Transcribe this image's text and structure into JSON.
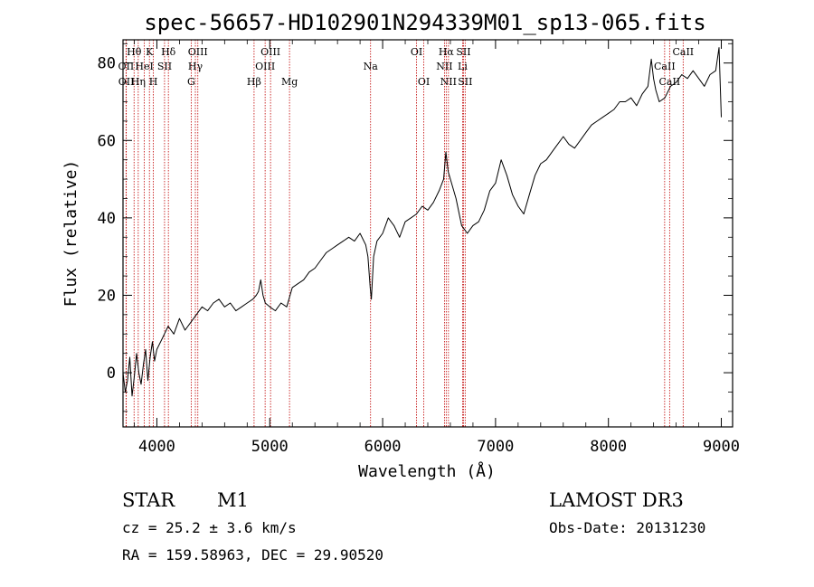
{
  "chart_data": {
    "type": "line",
    "title": "spec-56657-HD102901N294339M01_sp13-065.fits",
    "xlabel": "Wavelength (Å)",
    "ylabel": "Flux (relative)",
    "xlim": [
      3700,
      9100
    ],
    "ylim": [
      -14,
      86
    ],
    "x_ticks": [
      4000,
      5000,
      6000,
      7000,
      8000,
      9000
    ],
    "y_ticks": [
      0,
      20,
      40,
      60,
      80
    ],
    "series": [
      {
        "x": [
          3700,
          3720,
          3740,
          3760,
          3780,
          3800,
          3820,
          3840,
          3860,
          3880,
          3900,
          3920,
          3940,
          3960,
          3980,
          4000,
          4050,
          4100,
          4150,
          4200,
          4250,
          4300,
          4350,
          4400,
          4450,
          4500,
          4550,
          4600,
          4650,
          4700,
          4750,
          4800,
          4850,
          4880,
          4900,
          4920,
          4940,
          4960,
          5000,
          5050,
          5100,
          5150,
          5200,
          5250,
          5300,
          5350,
          5400,
          5450,
          5500,
          5550,
          5600,
          5650,
          5700,
          5750,
          5800,
          5850,
          5870,
          5890,
          5900,
          5920,
          5950,
          6000,
          6050,
          6100,
          6150,
          6200,
          6250,
          6300,
          6350,
          6400,
          6450,
          6500,
          6540,
          6560,
          6580,
          6600,
          6650,
          6700,
          6750,
          6800,
          6850,
          6900,
          6950,
          7000,
          7050,
          7100,
          7150,
          7200,
          7250,
          7300,
          7350,
          7400,
          7450,
          7500,
          7550,
          7600,
          7650,
          7700,
          7750,
          7800,
          7850,
          7900,
          7950,
          8000,
          8050,
          8100,
          8150,
          8200,
          8250,
          8300,
          8350,
          8380,
          8400,
          8420,
          8450,
          8500,
          8550,
          8600,
          8650,
          8700,
          8750,
          8800,
          8850,
          8900,
          8950,
          8980,
          9000
        ],
        "y": [
          0,
          -5,
          -2,
          4,
          -6,
          -1,
          5,
          0,
          -3,
          2,
          6,
          -2,
          4,
          8,
          3,
          6,
          9,
          12,
          10,
          14,
          11,
          13,
          15,
          17,
          16,
          18,
          19,
          17,
          18,
          16,
          17,
          18,
          19,
          20,
          21,
          24,
          20,
          18,
          17,
          16,
          18,
          17,
          22,
          23,
          24,
          26,
          27,
          29,
          31,
          32,
          33,
          34,
          35,
          34,
          36,
          33,
          30,
          22,
          19,
          30,
          34,
          36,
          40,
          38,
          35,
          39,
          40,
          41,
          43,
          42,
          44,
          47,
          50,
          57,
          52,
          50,
          45,
          38,
          36,
          38,
          39,
          42,
          47,
          49,
          55,
          51,
          46,
          43,
          41,
          46,
          51,
          54,
          55,
          57,
          59,
          61,
          59,
          58,
          60,
          62,
          64,
          65,
          66,
          67,
          68,
          70,
          70,
          71,
          69,
          72,
          74,
          81,
          76,
          73,
          70,
          71,
          74,
          75,
          77,
          76,
          78,
          76,
          74,
          77,
          78,
          84,
          66
        ]
      }
    ],
    "spectral_lines": [
      {
        "label": "Hθ",
        "x": 3798,
        "row": 0
      },
      {
        "label": "OII",
        "x": 3727,
        "row": 1
      },
      {
        "label": "OII",
        "x": 3729,
        "row": 2
      },
      {
        "label": "K",
        "x": 3934,
        "row": 0
      },
      {
        "label": "HeI",
        "x": 3889,
        "row": 1
      },
      {
        "label": "Hη",
        "x": 3835,
        "row": 2
      },
      {
        "label": "SII",
        "x": 4068,
        "row": 1
      },
      {
        "label": "H",
        "x": 3969,
        "row": 2
      },
      {
        "label": "Hδ",
        "x": 4102,
        "row": 0
      },
      {
        "label": "OIII",
        "x": 4363,
        "row": 0
      },
      {
        "label": "Hγ",
        "x": 4341,
        "row": 1
      },
      {
        "label": "G",
        "x": 4304,
        "row": 2
      },
      {
        "label": "OIII",
        "x": 5007,
        "row": 0
      },
      {
        "label": "OIII",
        "x": 4959,
        "row": 1
      },
      {
        "label": "Hβ",
        "x": 4861,
        "row": 2
      },
      {
        "label": "Mg",
        "x": 5175,
        "row": 2
      },
      {
        "label": "Na",
        "x": 5893,
        "row": 1
      },
      {
        "label": "OI",
        "x": 6300,
        "row": 0
      },
      {
        "label": "OI",
        "x": 6364,
        "row": 2
      },
      {
        "label": "Hα",
        "x": 6563,
        "row": 0
      },
      {
        "label": "SII",
        "x": 6716,
        "row": 0
      },
      {
        "label": "NII",
        "x": 6548,
        "row": 1
      },
      {
        "label": "Li",
        "x": 6708,
        "row": 1
      },
      {
        "label": "NII",
        "x": 6583,
        "row": 2
      },
      {
        "label": "SII",
        "x": 6731,
        "row": 2
      },
      {
        "label": "CaII",
        "x": 8662,
        "row": 0
      },
      {
        "label": "CaII",
        "x": 8498,
        "row": 1
      },
      {
        "label": "CaII",
        "x": 8542,
        "row": 2
      }
    ]
  },
  "info": {
    "object_type": "STAR",
    "subclass": "M1",
    "survey": "LAMOST DR3",
    "cz": "cz = 25.2 ± 3.6 km/s",
    "obs_date": "Obs-Date: 20131230",
    "radec": "RA = 159.58963, DEC =  29.90520"
  },
  "colors": {
    "spectrum": "#000000",
    "line_marker": "#c00000",
    "axis": "#000000"
  }
}
